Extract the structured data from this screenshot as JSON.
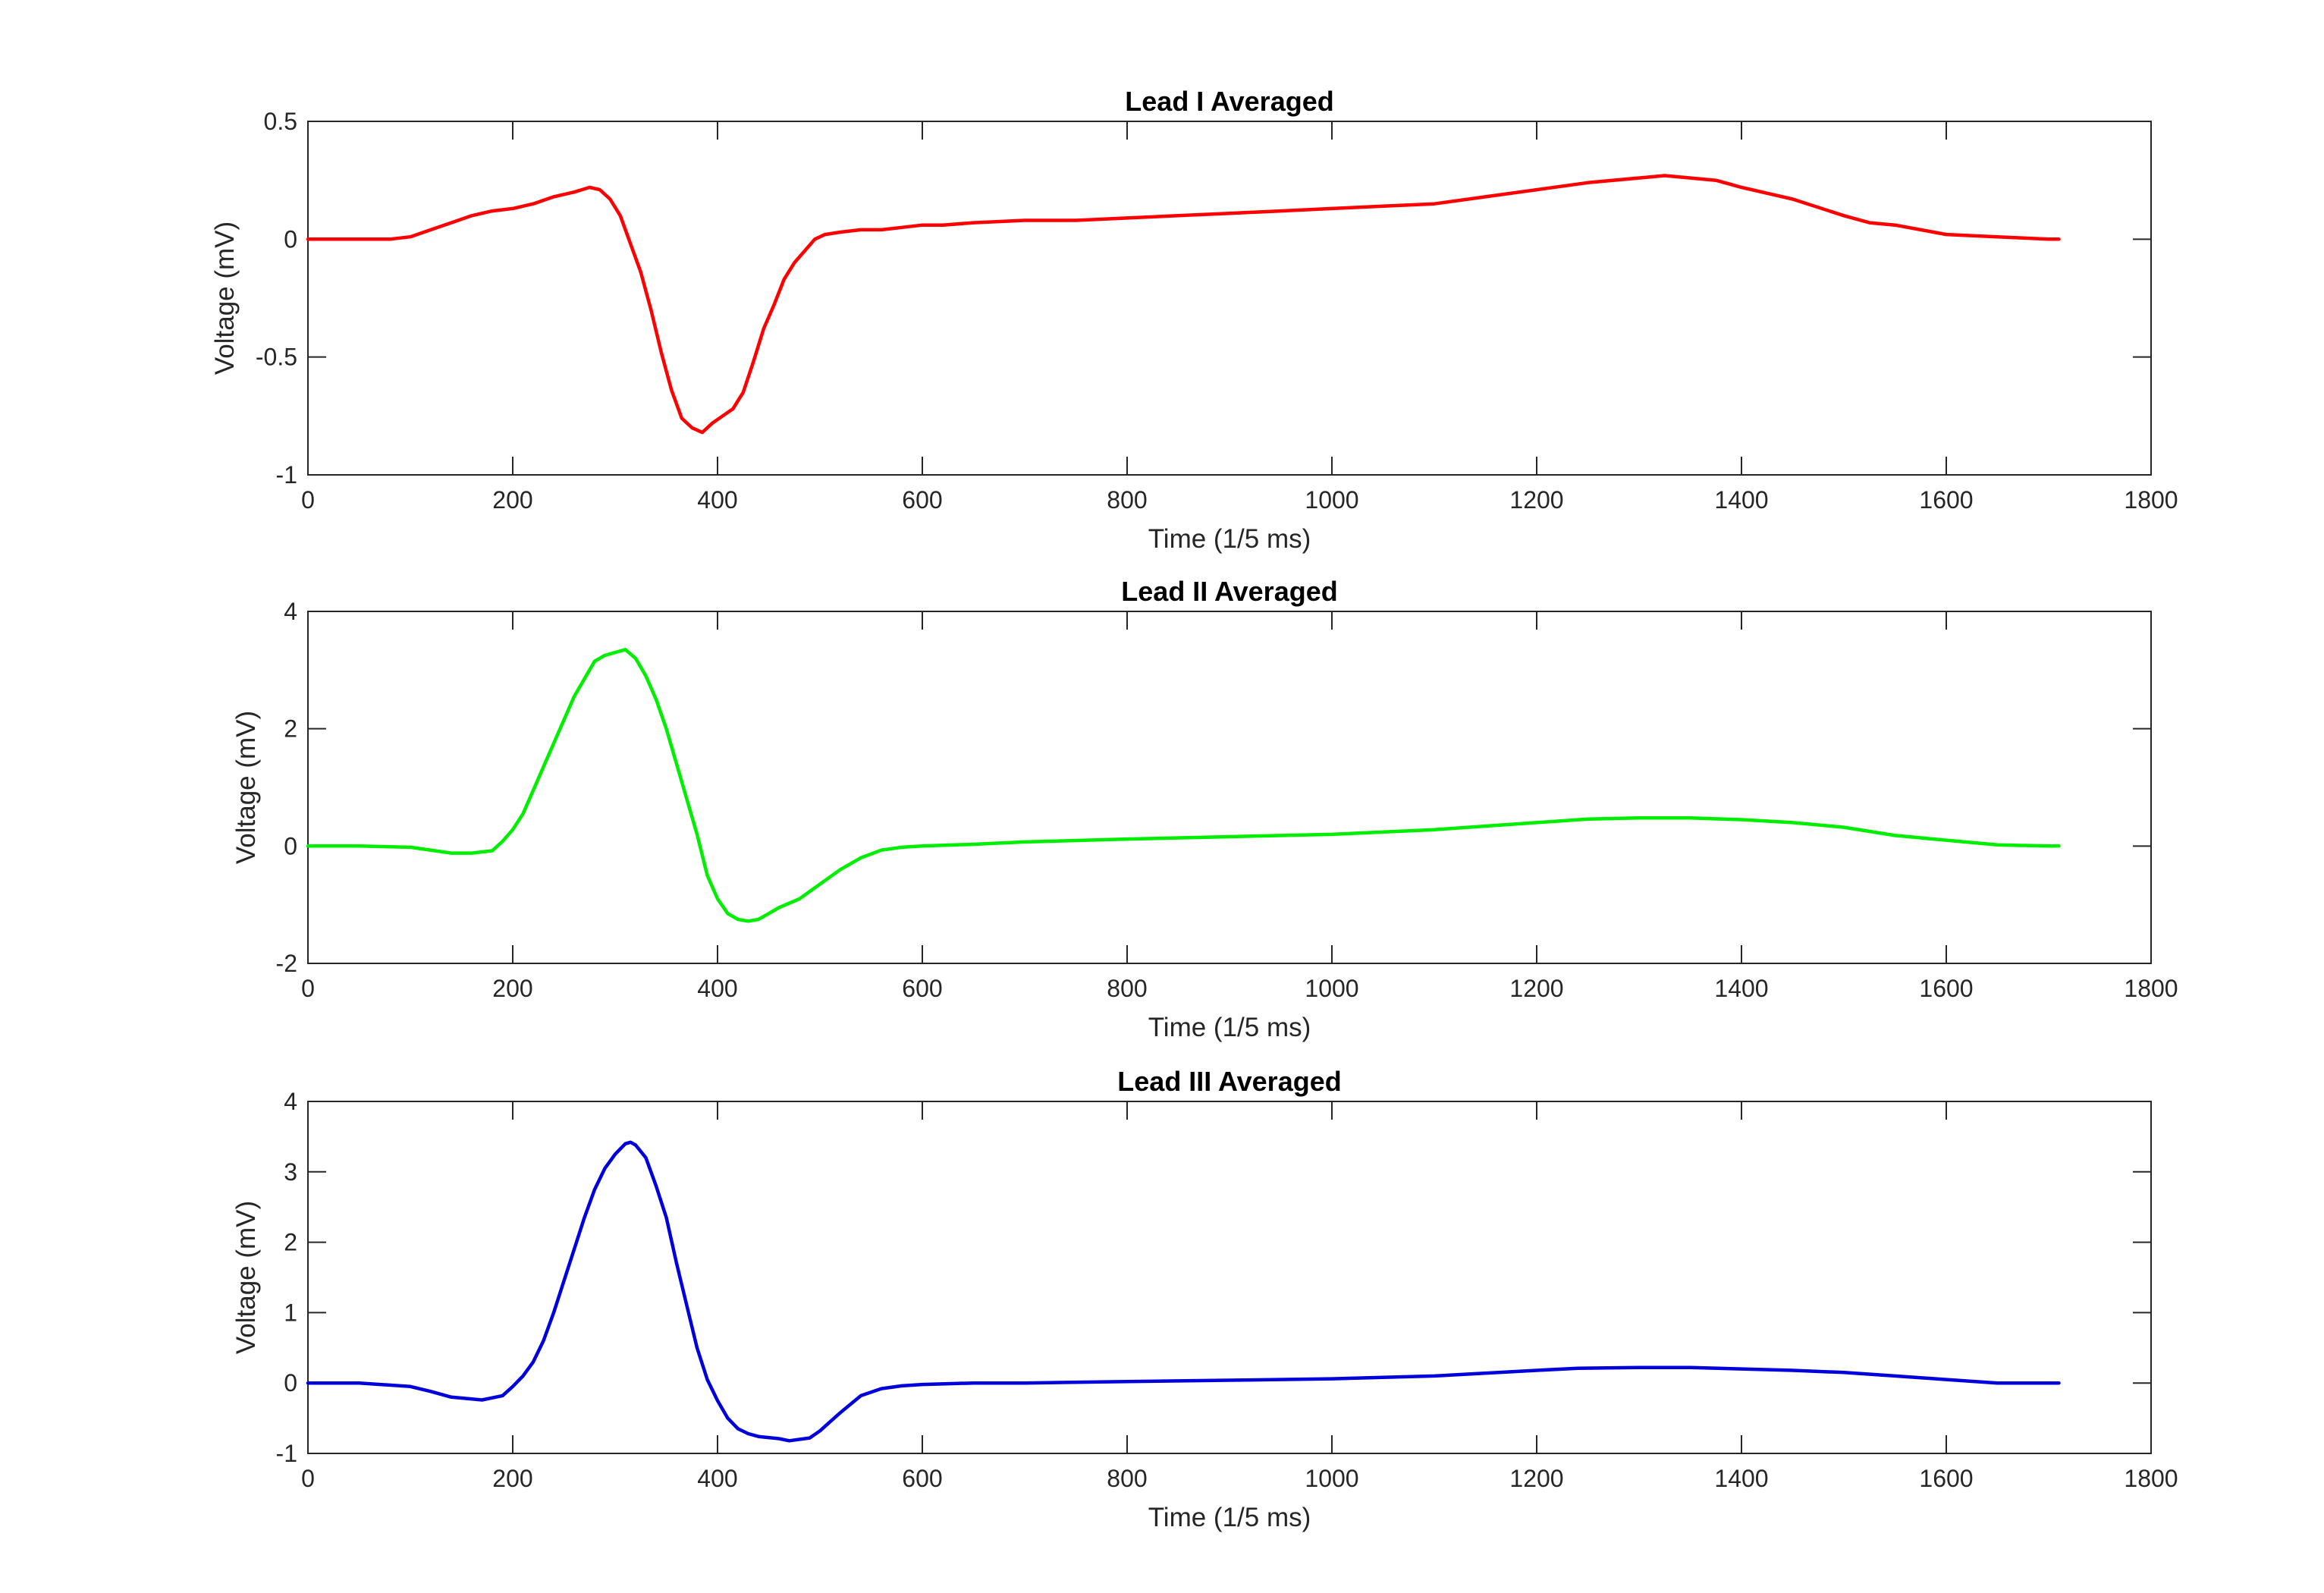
{
  "chart_data": [
    {
      "type": "line",
      "title": "Lead I Averaged",
      "xlabel": "Time (1/5 ms)",
      "ylabel": "Voltage (mV)",
      "xlim": [
        0,
        1800
      ],
      "ylim": [
        -1,
        0.5
      ],
      "xticks": [
        0,
        200,
        400,
        600,
        800,
        1000,
        1200,
        1400,
        1600,
        1800
      ],
      "yticks": [
        -1,
        -0.5,
        0,
        0.5
      ],
      "xtick_labels": [
        "0",
        "200",
        "400",
        "600",
        "800",
        "1000",
        "1200",
        "1400",
        "1600",
        "1800"
      ],
      "ytick_labels": [
        "-1",
        "-0.5",
        "0",
        "0.5"
      ],
      "grid": false,
      "series": [
        {
          "color": "#ff0000",
          "x": [
            0,
            20,
            40,
            60,
            80,
            100,
            120,
            140,
            160,
            180,
            200,
            220,
            240,
            260,
            275,
            285,
            295,
            305,
            315,
            325,
            335,
            345,
            355,
            365,
            375,
            385,
            395,
            405,
            415,
            425,
            435,
            445,
            455,
            465,
            475,
            485,
            495,
            505,
            520,
            540,
            560,
            580,
            600,
            620,
            650,
            700,
            750,
            800,
            850,
            900,
            950,
            1000,
            1050,
            1100,
            1150,
            1200,
            1250,
            1300,
            1325,
            1350,
            1375,
            1400,
            1450,
            1500,
            1525,
            1550,
            1575,
            1600,
            1650,
            1700,
            1710
          ],
          "y": [
            0.0,
            0.0,
            0.0,
            0.0,
            0.0,
            0.01,
            0.04,
            0.07,
            0.1,
            0.12,
            0.13,
            0.15,
            0.18,
            0.2,
            0.22,
            0.21,
            0.17,
            0.1,
            -0.02,
            -0.14,
            -0.3,
            -0.48,
            -0.64,
            -0.76,
            -0.8,
            -0.82,
            -0.78,
            -0.75,
            -0.72,
            -0.65,
            -0.52,
            -0.38,
            -0.28,
            -0.17,
            -0.1,
            -0.05,
            0.0,
            0.02,
            0.03,
            0.04,
            0.04,
            0.05,
            0.06,
            0.06,
            0.07,
            0.08,
            0.08,
            0.09,
            0.1,
            0.11,
            0.12,
            0.13,
            0.14,
            0.15,
            0.18,
            0.21,
            0.24,
            0.26,
            0.27,
            0.26,
            0.25,
            0.22,
            0.17,
            0.1,
            0.07,
            0.06,
            0.04,
            0.02,
            0.01,
            0.0,
            0.0
          ]
        }
      ]
    },
    {
      "type": "line",
      "title": "Lead II Averaged",
      "xlabel": "Time (1/5 ms)",
      "ylabel": "Voltage (mV)",
      "xlim": [
        0,
        1800
      ],
      "ylim": [
        -2,
        4
      ],
      "xticks": [
        0,
        200,
        400,
        600,
        800,
        1000,
        1200,
        1400,
        1600,
        1800
      ],
      "yticks": [
        -2,
        0,
        2,
        4
      ],
      "xtick_labels": [
        "0",
        "200",
        "400",
        "600",
        "800",
        "1000",
        "1200",
        "1400",
        "1600",
        "1800"
      ],
      "ytick_labels": [
        "-2",
        "0",
        "2",
        "4"
      ],
      "grid": false,
      "series": [
        {
          "color": "#00ee00",
          "x": [
            0,
            50,
            100,
            140,
            160,
            180,
            190,
            200,
            210,
            220,
            230,
            240,
            250,
            260,
            270,
            280,
            290,
            300,
            310,
            320,
            330,
            340,
            350,
            360,
            370,
            380,
            390,
            400,
            410,
            420,
            430,
            440,
            450,
            460,
            480,
            500,
            520,
            540,
            560,
            580,
            600,
            650,
            700,
            800,
            900,
            1000,
            1100,
            1200,
            1250,
            1300,
            1350,
            1400,
            1450,
            1500,
            1525,
            1550,
            1600,
            1650,
            1700,
            1710
          ],
          "y": [
            0.0,
            0.0,
            -0.02,
            -0.12,
            -0.12,
            -0.08,
            0.08,
            0.28,
            0.55,
            0.95,
            1.35,
            1.75,
            2.15,
            2.55,
            2.85,
            3.15,
            3.25,
            3.3,
            3.35,
            3.2,
            2.9,
            2.5,
            2.0,
            1.4,
            0.8,
            0.2,
            -0.5,
            -0.9,
            -1.15,
            -1.25,
            -1.28,
            -1.25,
            -1.15,
            -1.05,
            -0.9,
            -0.65,
            -0.4,
            -0.2,
            -0.07,
            -0.02,
            0.0,
            0.03,
            0.07,
            0.12,
            0.16,
            0.2,
            0.28,
            0.4,
            0.46,
            0.48,
            0.48,
            0.45,
            0.4,
            0.32,
            0.25,
            0.18,
            0.1,
            0.02,
            0.0,
            0.0
          ]
        }
      ]
    },
    {
      "type": "line",
      "title": "Lead III Averaged",
      "xlabel": "Time (1/5 ms)",
      "ylabel": "Voltage (mV)",
      "xlim": [
        0,
        1800
      ],
      "ylim": [
        -1,
        4
      ],
      "xticks": [
        0,
        200,
        400,
        600,
        800,
        1000,
        1200,
        1400,
        1600,
        1800
      ],
      "yticks": [
        -1,
        0,
        1,
        2,
        3,
        4
      ],
      "xtick_labels": [
        "0",
        "200",
        "400",
        "600",
        "800",
        "1000",
        "1200",
        "1400",
        "1600",
        "1800"
      ],
      "ytick_labels": [
        "-1",
        "0",
        "1",
        "2",
        "3",
        "4"
      ],
      "grid": false,
      "series": [
        {
          "color": "#0000dd",
          "x": [
            0,
            50,
            100,
            120,
            140,
            170,
            190,
            200,
            210,
            220,
            230,
            240,
            250,
            260,
            270,
            280,
            290,
            300,
            310,
            315,
            320,
            330,
            340,
            350,
            360,
            370,
            380,
            390,
            400,
            410,
            420,
            430,
            440,
            460,
            470,
            490,
            500,
            510,
            520,
            540,
            560,
            580,
            600,
            650,
            700,
            800,
            900,
            1000,
            1100,
            1200,
            1240,
            1300,
            1350,
            1400,
            1450,
            1500,
            1550,
            1600,
            1650,
            1700,
            1710
          ],
          "y": [
            0.0,
            0.0,
            -0.05,
            -0.12,
            -0.2,
            -0.24,
            -0.18,
            -0.05,
            0.1,
            0.3,
            0.6,
            1.0,
            1.45,
            1.9,
            2.35,
            2.75,
            3.05,
            3.25,
            3.4,
            3.42,
            3.38,
            3.2,
            2.8,
            2.35,
            1.7,
            1.1,
            0.5,
            0.05,
            -0.25,
            -0.5,
            -0.65,
            -0.72,
            -0.76,
            -0.79,
            -0.82,
            -0.78,
            -0.68,
            -0.55,
            -0.42,
            -0.18,
            -0.08,
            -0.04,
            -0.02,
            0.0,
            0.0,
            0.02,
            0.04,
            0.06,
            0.1,
            0.18,
            0.21,
            0.22,
            0.22,
            0.2,
            0.18,
            0.15,
            0.1,
            0.05,
            0.0,
            0.0,
            0.0
          ]
        }
      ]
    }
  ]
}
